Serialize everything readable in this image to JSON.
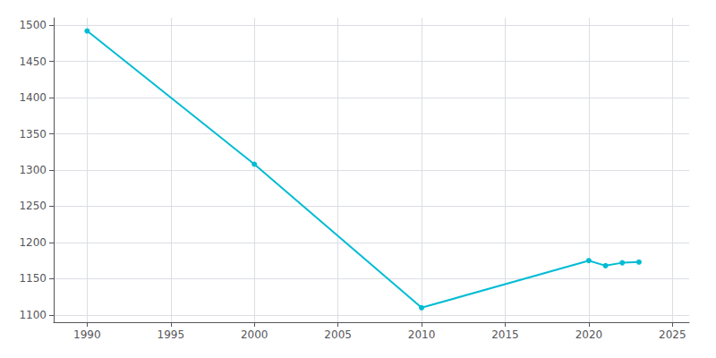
{
  "chart_data": {
    "type": "line",
    "x": [
      1990,
      2000,
      2010,
      2020,
      2021,
      2022,
      2023
    ],
    "values": [
      1492,
      1308,
      1110,
      1175,
      1168,
      1172,
      1173
    ],
    "color": "#00bcd4",
    "marker": "circle",
    "xlim": [
      1988,
      2026
    ],
    "xticks": [
      1990,
      1995,
      2000,
      2005,
      2010,
      2015,
      2020,
      2025
    ],
    "ylim": [
      1090,
      1510
    ],
    "yticks": [
      1100,
      1150,
      1200,
      1250,
      1300,
      1350,
      1400,
      1450,
      1500
    ],
    "grid": true
  }
}
